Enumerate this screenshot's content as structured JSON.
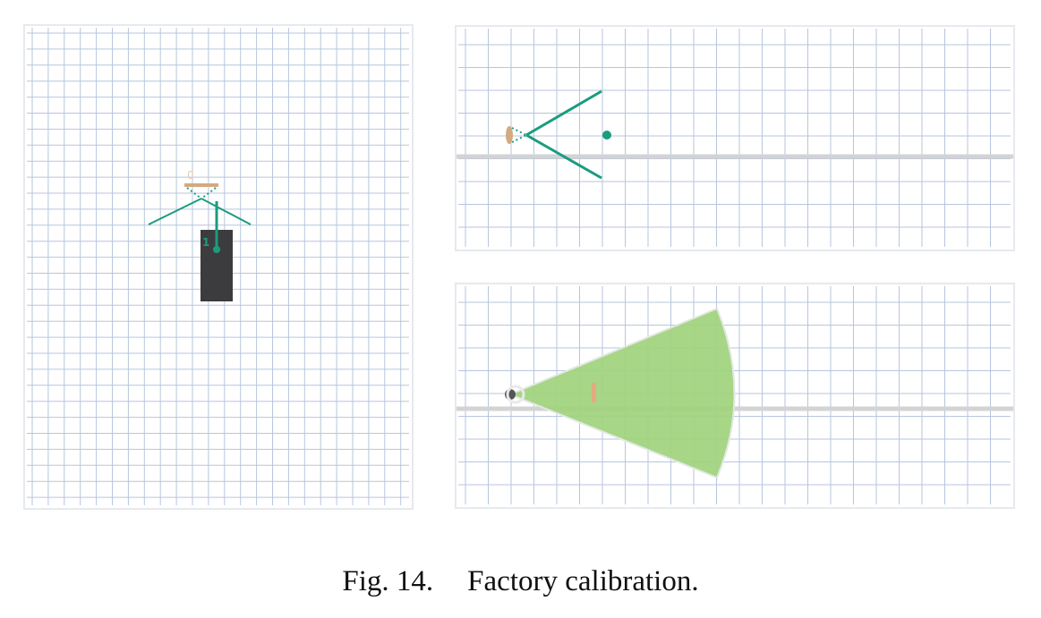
{
  "figure": {
    "number_label": "Fig. 14.",
    "caption": "Factory calibration."
  },
  "left_panel": {
    "sensor_label": "0",
    "camera_label": "1"
  },
  "colors": {
    "grid": "#b7c6dd",
    "teal": "#1a9c7e",
    "sensor": "#d2aa7e",
    "camera_body": "#3c3c3f",
    "axis": "#d3d3d3",
    "fov_fill": "#9fd37c"
  }
}
